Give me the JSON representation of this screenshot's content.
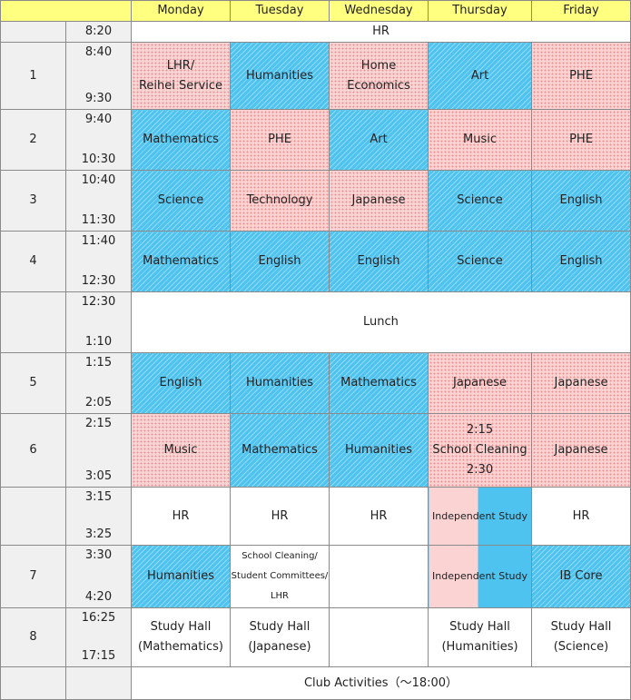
{
  "days": [
    "Monday",
    "Tuesday",
    "Wednesday",
    "Thursday",
    "Friday"
  ],
  "hr_row": {
    "time": "8:20",
    "label": "HR"
  },
  "periods": {
    "p1": {
      "num": "1",
      "start": "8:40",
      "end": "9:30",
      "mon_line1": "LHR/",
      "mon_line2": "Reihei Service",
      "tue": "Humanities",
      "wed": "Home Economics",
      "thu": "Art",
      "fri": "PHE"
    },
    "p2": {
      "num": "2",
      "start": "9:40",
      "end": "10:30",
      "mon": "Mathematics",
      "tue": "PHE",
      "wed": "Art",
      "thu": "Music",
      "fri": "PHE"
    },
    "p3": {
      "num": "3",
      "start": "10:40",
      "end": "11:30",
      "mon": "Science",
      "tue": "Technology",
      "wed": "Japanese",
      "thu": "Science",
      "fri": "English"
    },
    "p4": {
      "num": "4",
      "start": "11:40",
      "end": "12:30",
      "mon": "Mathematics",
      "tue": "English",
      "wed": "English",
      "thu": "Science",
      "fri": "English"
    },
    "lunch": {
      "start": "12:30",
      "end": "1:10",
      "label": "Lunch"
    },
    "p5": {
      "num": "5",
      "start": "1:15",
      "end": "2:05",
      "mon": "English",
      "tue": "Humanities",
      "wed": "Mathematics",
      "thu": "Japanese",
      "fri": "Japanese"
    },
    "p6": {
      "num": "6",
      "start": "2:15",
      "end": "3:05",
      "mon": "Music",
      "tue": "Mathematics",
      "wed": "Humanities",
      "thu_time1": "2:15",
      "thu_label": "School Cleaning",
      "thu_time2": "2:30",
      "fri": "Japanese"
    },
    "hr2": {
      "start": "3:15",
      "end": "3:25",
      "mon": "HR",
      "tue": "HR",
      "wed": "HR",
      "thu": "Independent Study",
      "fri": "HR"
    },
    "p7": {
      "num": "7",
      "start": "3:30",
      "end": "4:20",
      "mon": "Humanities",
      "tue_line1": "School Cleaning/",
      "tue_line2": "Student Committees/",
      "tue_line3": "LHR",
      "wed": "",
      "thu": "Independent Study",
      "fri": "IB Core"
    },
    "p8": {
      "num": "8",
      "start": "16:25",
      "end": "17:15",
      "mon_line1": "Study Hall",
      "mon_line2": "(Mathematics)",
      "tue_line1": "Study Hall",
      "tue_line2": "(Japanese)",
      "wed": "",
      "thu_line1": "Study Hall",
      "thu_line2": "(Humanities)",
      "fri_line1": "Study Hall",
      "fri_line2": "(Science)"
    }
  },
  "club": {
    "label": "Club Activities（～18:00）"
  },
  "colors": {
    "header": "#ffff80",
    "blue": "#4fc3f0",
    "pink": "#fbd3d3",
    "gray": "#f0f0f0"
  }
}
